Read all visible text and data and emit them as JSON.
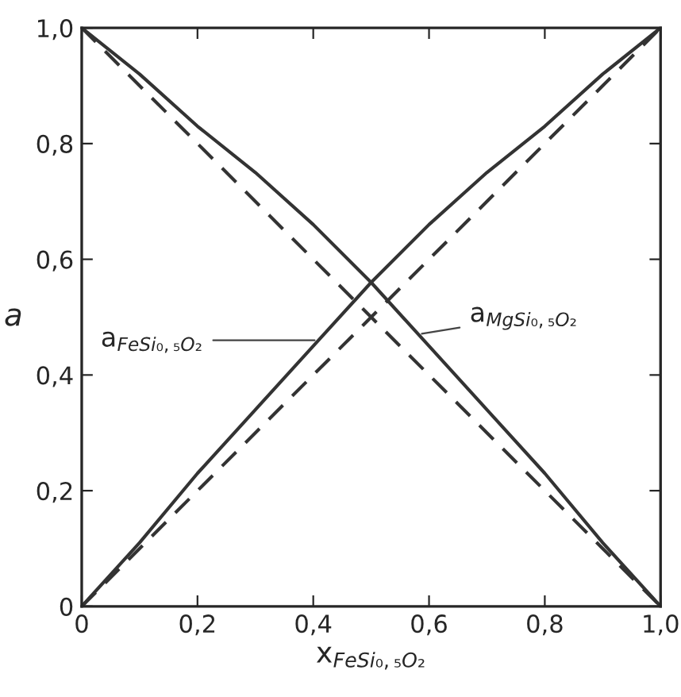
{
  "chart_data": {
    "type": "line",
    "xlabel": "x$_{FeSi₀,₅O₂}$",
    "ylabel": "a",
    "x": [
      0,
      0.1,
      0.2,
      0.3,
      0.4,
      0.5,
      0.6,
      0.7,
      0.8,
      0.9,
      1.0
    ],
    "series": [
      {
        "color": "#333333",
        "line_style": "solid",
        "values": [
          0,
          0.11,
          0.23,
          0.34,
          0.45,
          0.56,
          0.66,
          0.75,
          0.83,
          0.92,
          1.0
        ]
      },
      {
        "color": "#333333",
        "line_style": "dashed",
        "values": [
          0,
          0.1,
          0.2,
          0.3,
          0.4,
          0.5,
          0.6,
          0.7,
          0.8,
          0.9,
          1.0
        ]
      },
      {
        "color": "#333333",
        "line_style": "solid",
        "values": [
          1.0,
          0.92,
          0.83,
          0.75,
          0.66,
          0.56,
          0.45,
          0.34,
          0.23,
          0.11,
          0
        ]
      },
      {
        "color": "#333333",
        "line_style": "dashed",
        "values": [
          1.0,
          0.9,
          0.8,
          0.7,
          0.6,
          0.5,
          0.4,
          0.3,
          0.2,
          0.1,
          0
        ]
      }
    ],
    "xlim": [
      0,
      1.0
    ],
    "ylim": [
      0,
      1.0
    ],
    "xticks": [
      0,
      {
        "value": 0.2,
        "label": "0,2"
      },
      {
        "value": 0.4,
        "label": "0,4"
      },
      {
        "value": 0.6,
        "label": "0,6"
      },
      {
        "value": 0.8,
        "label": "0,8"
      },
      {
        "value": 1.0,
        "label": "1,0"
      }
    ],
    "yticks": [
      0,
      {
        "value": 0.2,
        "label": "0,2"
      },
      {
        "value": 0.4,
        "label": "0,4"
      },
      {
        "value": 0.6,
        "label": "0,6"
      },
      {
        "value": 0.8,
        "label": "0,8"
      },
      {
        "value": 1.0,
        "label": "1,0"
      }
    ],
    "annotations": [
      {
        "text": "a$_{FeSi₀,₅O₂}$",
        "x": 0.41,
        "y": 0.46
      },
      {
        "text": "a$_{MgSi₀,₅O₂}$",
        "x": 0.58,
        "y": 0.47
      }
    ],
    "grid": false,
    "legend": false,
    "marker": "none"
  }
}
